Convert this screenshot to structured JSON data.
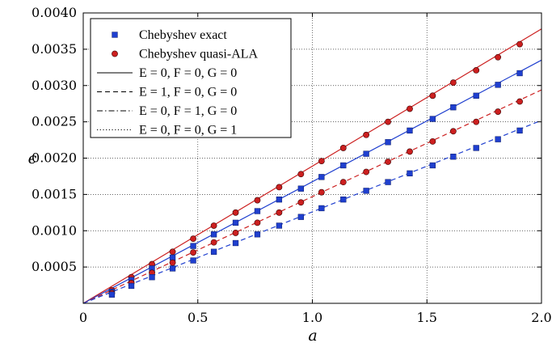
{
  "chart_data": {
    "type": "line",
    "xlabel": "a",
    "ylabel": "ϵ",
    "xlim": [
      0,
      2.0
    ],
    "ylim": [
      0,
      0.004
    ],
    "xticks": [
      "0",
      "0.5",
      "1.0",
      "1.5",
      "2.0"
    ],
    "yticks": [
      "0.0005",
      "0.0010",
      "0.0015",
      "0.0020",
      "0.0025",
      "0.0030",
      "0.0035",
      "0.0040"
    ],
    "grid": true,
    "legend_position": "top-left",
    "legend": [
      {
        "label": "Chebyshev exact",
        "style": "square-marker",
        "color": "#1f3fcf"
      },
      {
        "label": "Chebyshev quasi-ALA",
        "style": "circle-marker",
        "color": "#cc1f1f"
      },
      {
        "label": "E = 0, F = 0, G = 0",
        "style": "solid",
        "color": "#000000"
      },
      {
        "label": "E = 1, F = 0, G = 0",
        "style": "dashed",
        "color": "#000000"
      },
      {
        "label": "E = 0, F = 1, G = 0",
        "style": "dashdot",
        "color": "#000000"
      },
      {
        "label": "E = 0, F = 0, G = 1",
        "style": "dotted",
        "color": "#000000"
      }
    ],
    "lines": [
      {
        "name": "red solid",
        "color": "#cc1f1f",
        "dash": "",
        "slope": 0.00189
      },
      {
        "name": "blue solid",
        "color": "#1f3fcf",
        "dash": "",
        "slope": 0.001675
      },
      {
        "name": "red dashed",
        "color": "#cc1f1f",
        "dash": "6,4",
        "slope": 0.00147
      },
      {
        "name": "blue dashed",
        "color": "#1f3fcf",
        "dash": "6,4",
        "slope": 0.00126
      }
    ],
    "x": [
      0.125,
      0.21,
      0.3,
      0.39,
      0.48,
      0.57,
      0.665,
      0.76,
      0.855,
      0.95,
      1.04,
      1.135,
      1.235,
      1.33,
      1.425,
      1.525,
      1.615,
      1.715,
      1.81,
      1.905
    ],
    "series": [
      {
        "name": "Chebyshev quasi-ALA",
        "marker": "circle",
        "color": "#cc1f1f",
        "values": [
          0.00018,
          0.00036,
          0.00054,
          0.00071,
          0.00089,
          0.00107,
          0.00125,
          0.00142,
          0.0016,
          0.00178,
          0.00196,
          0.00214,
          0.00232,
          0.0025,
          0.00268,
          0.00286,
          0.00304,
          0.00321,
          0.00339,
          0.00357
        ]
      },
      {
        "name": "Chebyshev exact",
        "marker": "square",
        "color": "#1f3fcf",
        "values": [
          0.00016,
          0.00032,
          0.00048,
          0.00063,
          0.00079,
          0.00095,
          0.00111,
          0.00127,
          0.00143,
          0.00158,
          0.00174,
          0.0019,
          0.00206,
          0.00222,
          0.00238,
          0.00254,
          0.0027,
          0.00286,
          0.00301,
          0.00317
        ]
      },
      {
        "name": "quasi-ALA (E=1)",
        "marker": "circle",
        "color": "#cc1f1f",
        "values": [
          0.00014,
          0.00028,
          0.00042,
          0.00056,
          0.0007,
          0.00084,
          0.00097,
          0.00111,
          0.00125,
          0.00139,
          0.00153,
          0.00167,
          0.00181,
          0.00195,
          0.00209,
          0.00223,
          0.00237,
          0.0025,
          0.00264,
          0.00278
        ]
      },
      {
        "name": "exact (E=1)",
        "marker": "square",
        "color": "#1f3fcf",
        "values": [
          0.00012,
          0.00024,
          0.00036,
          0.00048,
          0.00059,
          0.00071,
          0.00083,
          0.00095,
          0.00107,
          0.00119,
          0.00131,
          0.00143,
          0.00155,
          0.00167,
          0.00179,
          0.0019,
          0.00202,
          0.00214,
          0.00226,
          0.00238
        ]
      }
    ]
  }
}
